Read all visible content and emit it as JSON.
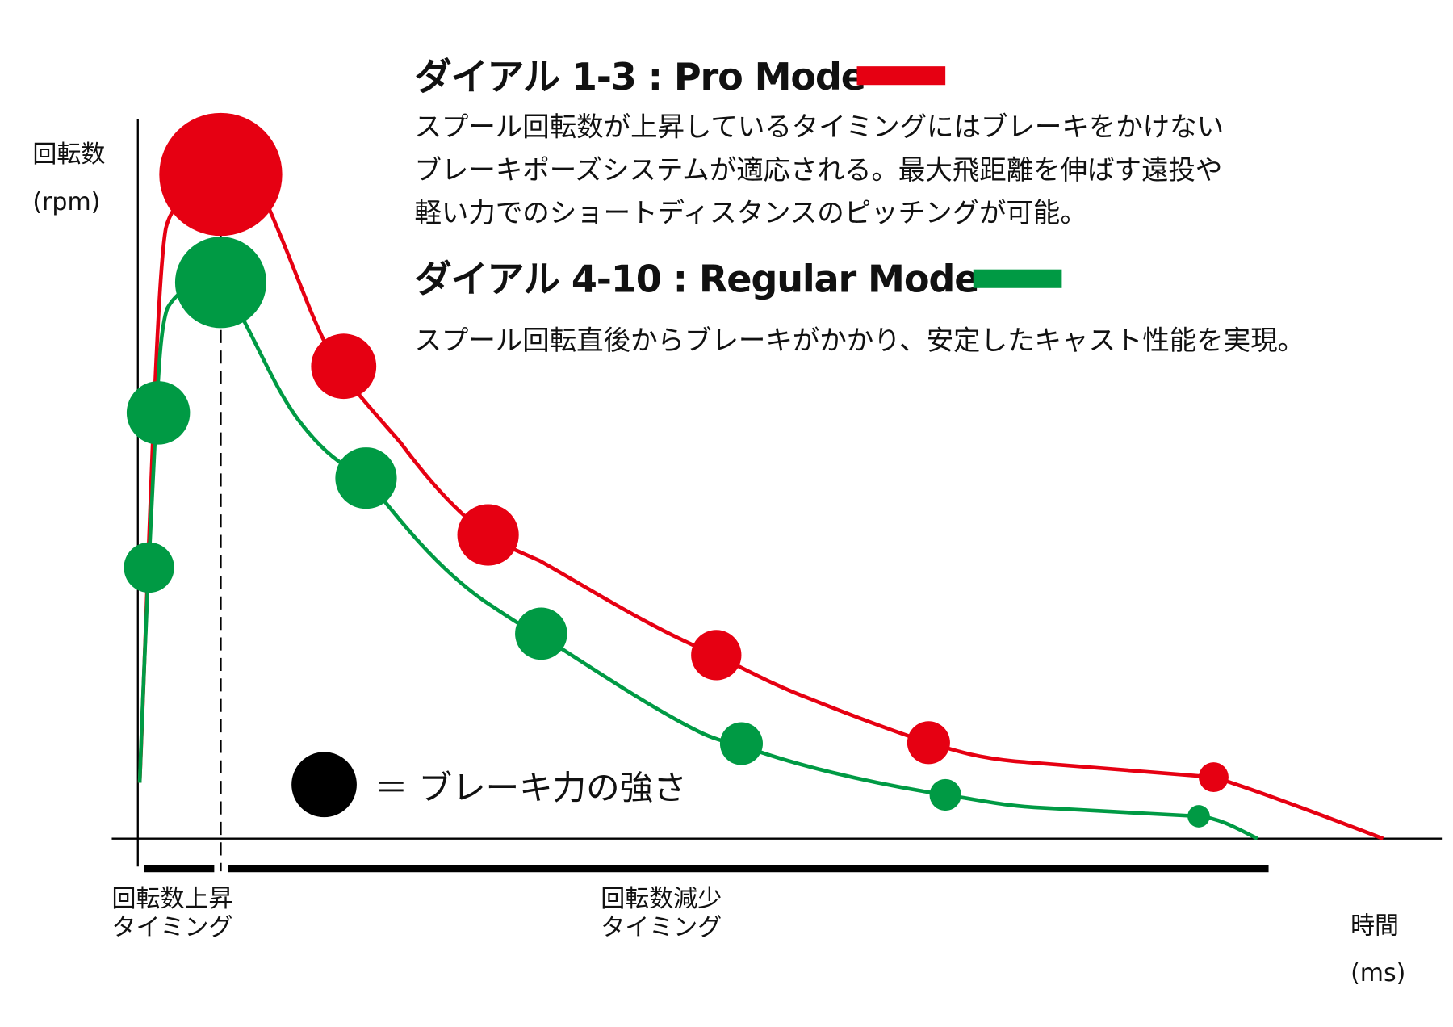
{
  "colors": {
    "pro": "#e60012",
    "regular": "#009a44",
    "legend": "#000000"
  },
  "y_axis": {
    "label": "回転数",
    "unit": "(rpm)"
  },
  "x_axis": {
    "label": "時間",
    "unit": "(ms)"
  },
  "pro_mode": {
    "title": "ダイアル 1-3 : Pro Mode",
    "description": [
      "スプール回転数が上昇しているタイミングにはブレーキをかけない",
      "ブレーキポーズシステムが適応される。最大飛距離を伸ばす遠投や",
      "軽い力でのショートディスタンスのピッチングが可能。"
    ]
  },
  "regular_mode": {
    "title": "ダイアル 4-10 : Regular Mode",
    "description": [
      "スプール回転直後からブレーキがかかり、安定したキャスト性能を実現。"
    ]
  },
  "legend": {
    "text": "＝ ブレーキ力の強さ"
  },
  "phases": {
    "rise": [
      "回転数上昇",
      "タイミング"
    ],
    "decline": [
      "回転数減少",
      "タイミング"
    ]
  }
}
